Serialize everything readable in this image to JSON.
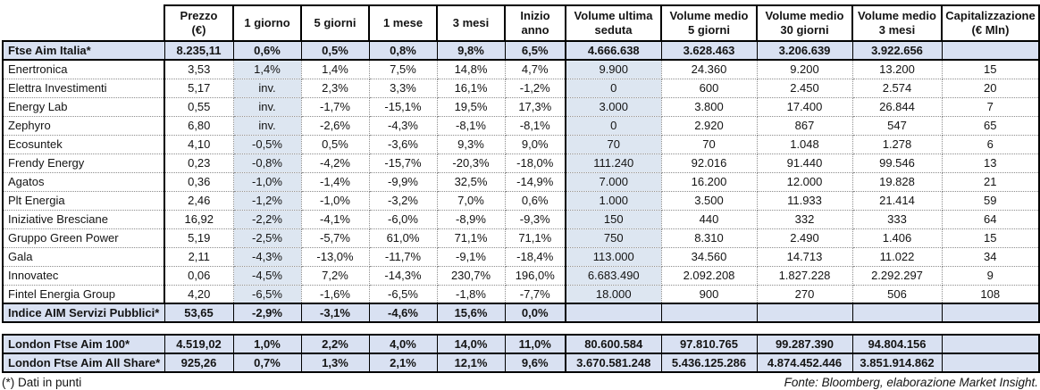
{
  "columns": [
    "Prezzo\n(€)",
    "1 giorno",
    "5 giorni",
    "1 mese",
    "3 mesi",
    "Inizio anno",
    "Volume ultima\nseduta",
    "Volume medio\n5 giorni",
    "Volume medio\n30 giorni",
    "Volume medio\n3 mesi",
    "Capitalizzazione\n(€ Mln)"
  ],
  "main_rows": [
    {
      "name": "Ftse Aim Italia*",
      "highlight": true,
      "cells": [
        "8.235,11",
        "0,6%",
        "0,5%",
        "0,8%",
        "9,8%",
        "6,5%",
        "4.666.638",
        "3.628.463",
        "3.206.639",
        "3.922.656",
        ""
      ]
    },
    {
      "name": "Enertronica",
      "highlight": false,
      "cells": [
        "3,53",
        "1,4%",
        "1,4%",
        "7,5%",
        "14,8%",
        "4,7%",
        "9.900",
        "24.360",
        "9.200",
        "13.200",
        "15"
      ]
    },
    {
      "name": "Elettra Investimenti",
      "highlight": false,
      "cells": [
        "5,17",
        "inv.",
        "2,3%",
        "3,3%",
        "16,1%",
        "-1,2%",
        "0",
        "600",
        "2.450",
        "2.574",
        "20"
      ]
    },
    {
      "name": "Energy Lab",
      "highlight": false,
      "cells": [
        "0,55",
        "inv.",
        "-1,7%",
        "-15,1%",
        "19,5%",
        "17,3%",
        "3.000",
        "3.800",
        "17.400",
        "26.844",
        "7"
      ]
    },
    {
      "name": "Zephyro",
      "highlight": false,
      "cells": [
        "6,80",
        "inv.",
        "-2,6%",
        "-4,3%",
        "-8,1%",
        "-8,1%",
        "0",
        "2.920",
        "867",
        "547",
        "65"
      ]
    },
    {
      "name": "Ecosuntek",
      "highlight": false,
      "cells": [
        "4,10",
        "-0,5%",
        "0,5%",
        "-3,6%",
        "9,3%",
        "9,0%",
        "70",
        "70",
        "1.048",
        "1.278",
        "6"
      ]
    },
    {
      "name": "Frendy Energy",
      "highlight": false,
      "cells": [
        "0,23",
        "-0,8%",
        "-4,2%",
        "-15,7%",
        "-20,3%",
        "-18,0%",
        "111.240",
        "92.016",
        "91.440",
        "99.546",
        "13"
      ]
    },
    {
      "name": "Agatos",
      "highlight": false,
      "cells": [
        "0,36",
        "-1,0%",
        "-1,4%",
        "-9,9%",
        "32,5%",
        "-14,9%",
        "7.000",
        "16.200",
        "12.000",
        "19.828",
        "21"
      ]
    },
    {
      "name": "Plt Energia",
      "highlight": false,
      "cells": [
        "2,46",
        "-1,2%",
        "-1,0%",
        "-3,2%",
        "7,0%",
        "0,6%",
        "1.000",
        "3.500",
        "11.933",
        "21.414",
        "59"
      ]
    },
    {
      "name": "Iniziative Bresciane",
      "highlight": false,
      "cells": [
        "16,92",
        "-2,2%",
        "-4,1%",
        "-6,0%",
        "-8,9%",
        "-9,3%",
        "150",
        "440",
        "332",
        "333",
        "64"
      ]
    },
    {
      "name": "Gruppo Green Power",
      "highlight": false,
      "cells": [
        "5,19",
        "-2,5%",
        "-5,7%",
        "61,0%",
        "71,1%",
        "71,1%",
        "750",
        "8.310",
        "2.490",
        "1.406",
        "15"
      ]
    },
    {
      "name": "Gala",
      "highlight": false,
      "cells": [
        "2,11",
        "-4,3%",
        "-13,0%",
        "-11,7%",
        "-9,1%",
        "-18,4%",
        "113.000",
        "34.560",
        "14.713",
        "11.022",
        "34"
      ]
    },
    {
      "name": "Innovatec",
      "highlight": false,
      "cells": [
        "0,06",
        "-4,5%",
        "7,2%",
        "-14,3%",
        "230,7%",
        "196,0%",
        "6.683.490",
        "2.092.208",
        "1.827.228",
        "2.292.297",
        "9"
      ]
    },
    {
      "name": "Fintel Energia Group",
      "highlight": false,
      "cells": [
        "4,20",
        "-6,5%",
        "-1,6%",
        "-6,5%",
        "-1,8%",
        "-7,7%",
        "18.000",
        "900",
        "270",
        "506",
        "108"
      ]
    },
    {
      "name": "Indice AIM Servizi Pubblici*",
      "highlight": true,
      "cells": [
        "53,65",
        "-2,9%",
        "-3,1%",
        "-4,6%",
        "15,6%",
        "0,0%",
        "",
        "",
        "",
        "",
        ""
      ]
    }
  ],
  "london_rows": [
    {
      "name": "London Ftse Aim 100*",
      "highlight": true,
      "cells": [
        "4.519,02",
        "1,0%",
        "2,2%",
        "4,0%",
        "14,0%",
        "11,0%",
        "80.600.584",
        "97.810.765",
        "99.287.390",
        "94.804.156",
        ""
      ]
    },
    {
      "name": "London Ftse Aim All Share*",
      "highlight": true,
      "cells": [
        "925,26",
        "0,7%",
        "1,3%",
        "2,1%",
        "12,1%",
        "9,6%",
        "3.670.581.248",
        "5.436.125.286",
        "4.874.452.446",
        "3.851.914.862",
        ""
      ]
    }
  ],
  "footer": {
    "left": "(*) Dati in punti",
    "right": "Fonte: Bloomberg, elaborazione Market Insight."
  },
  "colors": {
    "row_highlight": "#d9e1f2",
    "column_highlight": "#dde6f1",
    "border": "#000000",
    "dotted_grid": "#8c8c8c"
  }
}
